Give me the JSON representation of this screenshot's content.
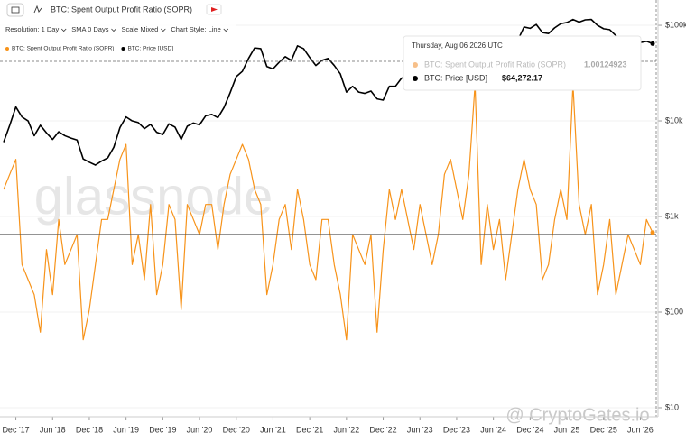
{
  "chart_data": {
    "type": "line",
    "title": "BTC: Spent Output Profit Ratio (SOPR)",
    "toolbar": [
      "Resolution: 1 Day",
      "SMA 0 Days",
      "Scale Mixed",
      "Chart Style: Line"
    ],
    "watermark": "glassnode",
    "credit": "@ CryptoGates.io",
    "x": [
      "2017-10",
      "2017-11",
      "2017-12",
      "2018-01",
      "2018-02",
      "2018-03",
      "2018-04",
      "2018-05",
      "2018-06",
      "2018-07",
      "2018-08",
      "2018-09",
      "2018-10",
      "2018-11",
      "2018-12",
      "2019-01",
      "2019-02",
      "2019-03",
      "2019-04",
      "2019-05",
      "2019-06",
      "2019-07",
      "2019-08",
      "2019-09",
      "2019-10",
      "2019-11",
      "2019-12",
      "2020-01",
      "2020-02",
      "2020-03",
      "2020-04",
      "2020-05",
      "2020-06",
      "2020-07",
      "2020-08",
      "2020-09",
      "2020-10",
      "2020-11",
      "2020-12",
      "2021-01",
      "2021-02",
      "2021-03",
      "2021-04",
      "2021-05",
      "2021-06",
      "2021-07",
      "2021-08",
      "2021-09",
      "2021-10",
      "2021-11",
      "2021-12",
      "2022-01",
      "2022-02",
      "2022-03",
      "2022-04",
      "2022-05",
      "2022-06",
      "2022-07",
      "2022-08",
      "2022-09",
      "2022-10",
      "2022-11",
      "2022-12",
      "2023-01",
      "2023-02",
      "2023-03",
      "2023-04",
      "2023-05",
      "2023-06",
      "2023-07",
      "2023-08",
      "2023-09",
      "2023-10",
      "2023-11",
      "2023-12",
      "2024-01",
      "2024-02",
      "2024-03",
      "2024-04",
      "2024-05",
      "2024-06",
      "2024-07",
      "2024-08",
      "2024-09",
      "2024-10",
      "2024-11",
      "2024-12",
      "2025-01",
      "2025-02",
      "2025-03",
      "2025-04",
      "2025-05",
      "2025-06",
      "2025-07",
      "2025-08",
      "2025-09",
      "2025-10",
      "2025-11",
      "2025-12",
      "2026-01",
      "2026-02",
      "2026-03",
      "2026-04",
      "2026-05",
      "2026-06",
      "2026-07",
      "2026-08"
    ],
    "xlim": [
      "2017-10",
      "2026-08"
    ],
    "xticks": [
      {
        "value": "2017-12",
        "label": "Dec '17"
      },
      {
        "value": "2018-06",
        "label": "Jun '18"
      },
      {
        "value": "2018-12",
        "label": "Dec '18"
      },
      {
        "value": "2019-06",
        "label": "Jun '19"
      },
      {
        "value": "2019-12",
        "label": "Dec '19"
      },
      {
        "value": "2020-06",
        "label": "Jun '20"
      },
      {
        "value": "2020-12",
        "label": "Dec '20"
      },
      {
        "value": "2021-06",
        "label": "Jun '21"
      },
      {
        "value": "2021-12",
        "label": "Dec '21"
      },
      {
        "value": "2022-06",
        "label": "Jun '22"
      },
      {
        "value": "2022-12",
        "label": "Dec '22"
      },
      {
        "value": "2023-06",
        "label": "Jun '23"
      },
      {
        "value": "2023-12",
        "label": "Dec '23"
      },
      {
        "value": "2024-06",
        "label": "Jun '24"
      },
      {
        "value": "2024-12",
        "label": "Dec '24"
      },
      {
        "value": "2025-06",
        "label": "Jun '25"
      },
      {
        "value": "2025-12",
        "label": "Dec '25"
      },
      {
        "value": "2026-06",
        "label": "Jun '26"
      }
    ],
    "ylim": [
      0.88,
      1.15
    ],
    "hline": 1,
    "y2lim": [
      8.4,
      148000
    ],
    "y2_log": true,
    "y2ticks": [
      {
        "value": 100000,
        "label": "$100k"
      },
      {
        "value": 10000,
        "label": "$10k"
      },
      {
        "value": 1000,
        "label": "$1k"
      },
      {
        "value": 100,
        "label": "$100"
      },
      {
        "value": 10,
        "label": "$10"
      }
    ],
    "grid": true,
    "series": [
      {
        "name": "BTC: Spent Output Profit Ratio (SOPR)",
        "color": "#f7931a",
        "values": [
          1.03,
          1.04,
          1.05,
          0.98,
          0.97,
          0.96,
          0.935,
          0.99,
          0.96,
          1.01,
          0.98,
          0.99,
          1.0,
          0.93,
          0.95,
          0.98,
          1.01,
          1.01,
          1.03,
          1.05,
          1.06,
          0.98,
          1.0,
          0.97,
          1.02,
          0.96,
          0.98,
          1.02,
          1.01,
          0.95,
          1.02,
          1.01,
          1.0,
          1.02,
          1.02,
          0.99,
          1.02,
          1.04,
          1.05,
          1.06,
          1.05,
          1.03,
          1.02,
          0.96,
          0.98,
          1.01,
          1.02,
          0.99,
          1.03,
          1.01,
          0.98,
          0.97,
          1.01,
          1.01,
          0.98,
          0.96,
          0.93,
          1.0,
          0.99,
          0.98,
          1.0,
          0.935,
          0.99,
          1.03,
          1.01,
          1.03,
          1.01,
          0.99,
          1.02,
          1.0,
          0.98,
          1.0,
          1.04,
          1.05,
          1.03,
          1.01,
          1.04,
          1.1,
          0.98,
          1.02,
          0.99,
          1.01,
          0.97,
          1.0,
          1.03,
          1.05,
          1.03,
          1.02,
          0.97,
          0.98,
          1.01,
          1.03,
          1.01,
          1.1,
          1.02,
          1.0,
          1.02,
          0.96,
          0.98,
          1.01,
          0.96,
          0.98,
          1.0,
          0.99,
          0.98,
          1.01,
          1.00124923
        ]
      },
      {
        "name": "BTC: Price [USD]",
        "color": "#000000",
        "axis": "y2",
        "values": [
          6000,
          9000,
          14000,
          11000,
          10000,
          7000,
          9000,
          7500,
          6400,
          7700,
          7000,
          6600,
          6300,
          4000,
          3700,
          3450,
          3800,
          4100,
          5300,
          8500,
          11000,
          10000,
          9600,
          8300,
          9200,
          7600,
          7200,
          9300,
          8600,
          6400,
          8800,
          9500,
          9100,
          11300,
          11700,
          10800,
          13800,
          19700,
          29000,
          33000,
          45000,
          58000,
          57000,
          37000,
          35000,
          41000,
          47000,
          43000,
          61000,
          57000,
          46000,
          38000,
          43000,
          45000,
          38000,
          31000,
          20000,
          23000,
          20000,
          19400,
          20500,
          17000,
          16500,
          23000,
          23000,
          28000,
          29000,
          27000,
          30500,
          29000,
          26000,
          27000,
          34500,
          37700,
          42000,
          42500,
          61000,
          71000,
          60000,
          67000,
          62700,
          64000,
          59000,
          63000,
          70000,
          96000,
          93000,
          102000,
          84000,
          82000,
          94000,
          104000,
          107000,
          115000,
          108000,
          114000,
          115000,
          100000,
          92000,
          90000,
          78000,
          70000,
          68000,
          72000,
          66000,
          68000,
          64272.17
        ]
      }
    ],
    "tooltip": {
      "date": "Thursday, Aug 06 2026 UTC",
      "sopr": 1.00124923,
      "price": {
        "value": 64272.17,
        "label": "$64,272.17"
      }
    }
  }
}
